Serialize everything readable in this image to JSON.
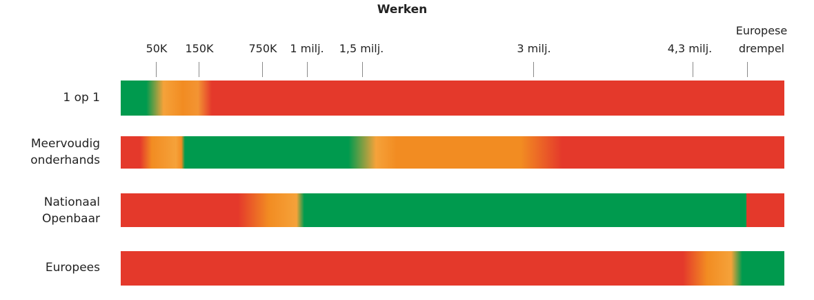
{
  "chart_data": {
    "type": "bar",
    "title": "Werken",
    "subtype": "horizontal gradient suitability bars",
    "ticks": [
      "50K",
      "150K",
      "750K",
      "1 milj.",
      "1,5 milj.",
      "3 milj.",
      "4,3 milj.",
      "Europese drempel"
    ],
    "categories": [
      "1 op 1",
      "Meervoudig onderhands",
      "Nationaal Openbaar",
      "Europees"
    ],
    "row_labels": [
      [
        "1 op 1"
      ],
      [
        "Meervoudig",
        "onderhands"
      ],
      [
        "Nationaal",
        "Openbaar"
      ],
      [
        "Europees"
      ]
    ],
    "series": [
      {
        "name": "1 op 1",
        "segments": [
          {
            "to": "50K",
            "color": "green"
          },
          {
            "to": "150K",
            "color": "orange"
          },
          {
            "to": "Europese drempel+",
            "color": "red"
          }
        ]
      },
      {
        "name": "Meervoudig onderhands",
        "segments": [
          {
            "to": "50K",
            "color": "red-orange"
          },
          {
            "to": "1,5 milj.",
            "color": "green"
          },
          {
            "to": "3 milj.",
            "color": "orange"
          },
          {
            "to": "end",
            "color": "red"
          }
        ]
      },
      {
        "name": "Nationaal Openbaar",
        "segments": [
          {
            "to": "750K",
            "color": "red-orange"
          },
          {
            "to": "Europese drempel",
            "color": "green"
          },
          {
            "to": "end",
            "color": "red"
          }
        ]
      },
      {
        "name": "Europees",
        "segments": [
          {
            "to": "4,3 milj.",
            "color": "red-orange"
          },
          {
            "to": "end",
            "color": "green"
          }
        ]
      }
    ],
    "colors": {
      "green": "#009a4e",
      "orange": "#f28c22",
      "red": "#e4392b"
    },
    "legend": "none",
    "grid": false
  }
}
